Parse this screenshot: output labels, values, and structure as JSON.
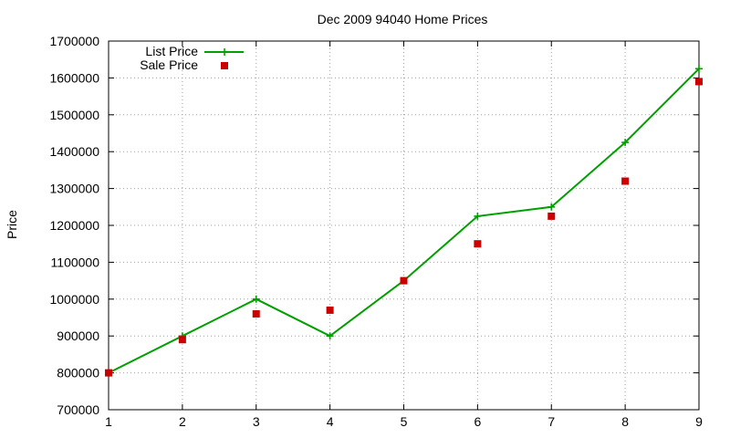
{
  "chart_data": {
    "type": "line",
    "title": "Dec 2009 94040 Home Prices",
    "xlabel": "",
    "ylabel": "Price",
    "xlim": [
      1,
      9
    ],
    "ylim": [
      700000,
      1700000
    ],
    "x_ticks": [
      "1",
      "2",
      "3",
      "4",
      "5",
      "6",
      "7",
      "8",
      "9"
    ],
    "y_ticks": [
      "700000",
      "800000",
      "900000",
      "1000000",
      "1100000",
      "1200000",
      "1300000",
      "1400000",
      "1500000",
      "1600000",
      "1700000"
    ],
    "grid": true,
    "legend_position": "top-left",
    "x": [
      1,
      2,
      3,
      4,
      5,
      6,
      7,
      8,
      9
    ],
    "series": [
      {
        "name": "List Price",
        "style": "line-with-plus-markers",
        "color": "#00a000",
        "values": [
          800000,
          900000,
          1000000,
          900000,
          1050000,
          1225000,
          1250000,
          1425000,
          1625000
        ]
      },
      {
        "name": "Sale Price",
        "style": "square-markers",
        "color": "#cc0000",
        "values": [
          800000,
          890000,
          960000,
          970000,
          1050000,
          1150000,
          1225000,
          1320000,
          1590000
        ]
      }
    ]
  }
}
